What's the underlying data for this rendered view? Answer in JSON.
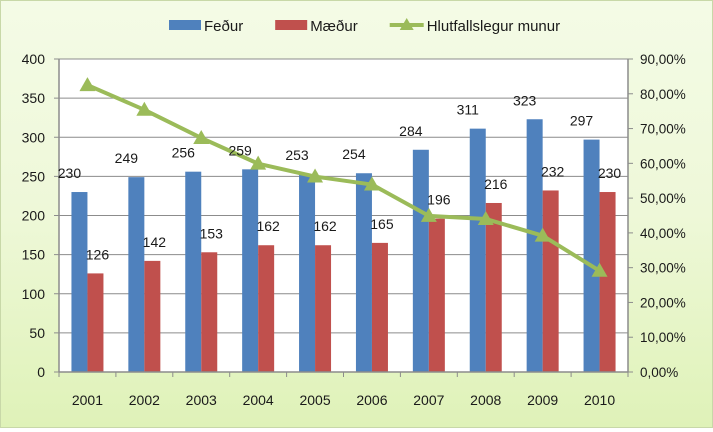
{
  "chart_data": {
    "type": "bar+line",
    "title": "",
    "categories": [
      "2001",
      "2002",
      "2003",
      "2004",
      "2005",
      "2006",
      "2007",
      "2008",
      "2009",
      "2010"
    ],
    "series": [
      {
        "name": "Feður",
        "type": "bar",
        "axis": "left",
        "color": "#4f81bd",
        "values": [
          230,
          249,
          256,
          259,
          253,
          254,
          284,
          311,
          323,
          297
        ]
      },
      {
        "name": "Mæður",
        "type": "bar",
        "axis": "left",
        "color": "#c0504d",
        "values": [
          126,
          142,
          153,
          162,
          162,
          165,
          196,
          216,
          232,
          230
        ]
      },
      {
        "name": "Hlutfallslegur munur",
        "type": "line",
        "axis": "right",
        "color": "#9bbb59",
        "marker": "triangle",
        "values": [
          0.825,
          0.754,
          0.673,
          0.599,
          0.562,
          0.539,
          0.449,
          0.44,
          0.392,
          0.291
        ]
      }
    ],
    "y_left": {
      "min": 0,
      "max": 400,
      "step": 50,
      "ticks": [
        "0",
        "50",
        "100",
        "150",
        "200",
        "250",
        "300",
        "350",
        "400"
      ]
    },
    "y_right": {
      "min": 0,
      "max": 0.9,
      "step": 0.1,
      "ticks": [
        "0,00%",
        "10,00%",
        "20,00%",
        "30,00%",
        "40,00%",
        "50,00%",
        "60,00%",
        "70,00%",
        "80,00%",
        "90,00%"
      ]
    },
    "xlabel": "",
    "ylabel": "",
    "y2label": "",
    "grid": true,
    "legend_position": "top",
    "data_labels": true
  },
  "legend": [
    {
      "label": "Feður",
      "color": "#4f81bd",
      "kind": "bar"
    },
    {
      "label": "Mæður",
      "color": "#c0504d",
      "kind": "bar"
    },
    {
      "label": "Hlutfallslegur munur",
      "color": "#9bbb59",
      "kind": "line"
    }
  ]
}
